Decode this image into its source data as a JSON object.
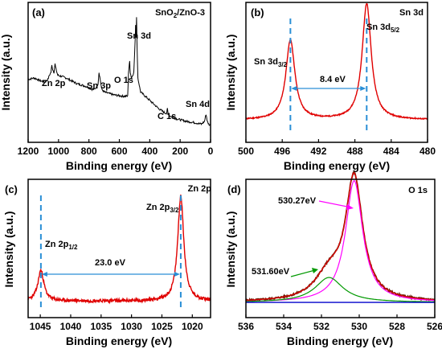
{
  "chart_data": [
    {
      "type": "line",
      "panel_label": "(a)",
      "corner_title": "SnO2/ZnO-3",
      "xlabel": "Binding energy (eV)",
      "ylabel": "Intensity (a.u.)",
      "xlim": [
        1200,
        0
      ],
      "xticks": [
        "1200",
        "1000",
        "800",
        "600",
        "400",
        "200",
        "0"
      ],
      "series": [
        {
          "color": "#000000",
          "x": [
            1200,
            1160,
            1120,
            1090,
            1070,
            1060,
            1050,
            1044,
            1038,
            1030,
            1023,
            1016,
            1005,
            950,
            880,
            820,
            780,
            760,
            750,
            740,
            734,
            726,
            716,
            700,
            640,
            580,
            545,
            540,
            532,
            528,
            520,
            505,
            497,
            493,
            490,
            487,
            484,
            478,
            460,
            420,
            380,
            340,
            300,
            288,
            284,
            280,
            270,
            230,
            160,
            100,
            60,
            40,
            30,
            26,
            22,
            12,
            0
          ],
          "y": [
            0.45,
            0.46,
            0.44,
            0.43,
            0.45,
            0.48,
            0.5,
            0.55,
            0.52,
            0.5,
            0.56,
            0.52,
            0.48,
            0.46,
            0.42,
            0.4,
            0.38,
            0.38,
            0.4,
            0.42,
            0.5,
            0.45,
            0.38,
            0.36,
            0.34,
            0.33,
            0.33,
            0.5,
            0.58,
            0.5,
            0.46,
            0.5,
            0.7,
            0.84,
            0.75,
            0.9,
            0.72,
            0.46,
            0.36,
            0.32,
            0.28,
            0.24,
            0.21,
            0.21,
            0.24,
            0.21,
            0.19,
            0.17,
            0.15,
            0.14,
            0.13,
            0.15,
            0.2,
            0.18,
            0.15,
            0.13,
            0.12
          ]
        }
      ],
      "annotations": [
        {
          "text": "Zn 2p",
          "x": 1060
        },
        {
          "text": "Sn 3p",
          "x": 730
        },
        {
          "text": "O 1s",
          "x": 540
        },
        {
          "text": "Sn 3d",
          "x": 487
        },
        {
          "text": "C 1s",
          "x": 284
        },
        {
          "text": "Sn 4d",
          "x": 26
        }
      ]
    },
    {
      "type": "line",
      "panel_label": "(b)",
      "corner_title": "Sn 3d",
      "xlabel": "Binding energy (eV)",
      "ylabel": "Intensity (a.u.)",
      "xlim": [
        500,
        480
      ],
      "xticks": [
        "500",
        "496",
        "492",
        "488",
        "484",
        "480"
      ],
      "series": [
        {
          "color": "#e00000",
          "peaks": [
            {
              "center": 495.1,
              "height": 0.57,
              "width": 0.6
            },
            {
              "center": 486.7,
              "height": 0.83,
              "width": 0.6
            }
          ]
        }
      ],
      "annotations": [
        {
          "text": "Sn 3d",
          "sub": "3/2",
          "x": 495.1
        },
        {
          "text": "Sn 3d",
          "sub": "5/2",
          "x": 486.7
        },
        {
          "text": "8.4 eV",
          "x1": 495.1,
          "x2": 486.7
        }
      ]
    },
    {
      "type": "line",
      "panel_label": "(c)",
      "corner_title": "Zn 2p",
      "xlabel": "Binding energy (eV)",
      "ylabel": "Intensity (a.u.)",
      "xlim": [
        1047,
        1017
      ],
      "xticks": [
        "1045",
        "1040",
        "1035",
        "1030",
        "1025",
        "1020"
      ],
      "series": [
        {
          "color": "#e00000",
          "peaks": [
            {
              "center": 1044.9,
              "height": 0.22,
              "width": 0.6
            },
            {
              "center": 1021.9,
              "height": 0.76,
              "width": 0.6
            }
          ]
        }
      ],
      "annotations": [
        {
          "text": "Zn 2p",
          "sub": "1/2",
          "x": 1044.9
        },
        {
          "text": "Zn 2p",
          "sub": "3/2",
          "x": 1021.9
        },
        {
          "text": "23.0 eV",
          "x1": 1044.9,
          "x2": 1021.9
        }
      ]
    },
    {
      "type": "line",
      "panel_label": "(d)",
      "corner_title": "O 1s",
      "xlabel": "Binding energy (eV)",
      "ylabel": "Intensity (a.u.)",
      "xlim": [
        536,
        526
      ],
      "xticks": [
        "536",
        "534",
        "532",
        "530",
        "528",
        "526"
      ],
      "series": [
        {
          "role": "raw",
          "color": "#6b1a00",
          "peaks": [
            {
              "center": 530.27,
              "height": 0.88,
              "width": 0.55
            },
            {
              "center": 531.6,
              "height": 0.18,
              "width": 0.9
            }
          ]
        },
        {
          "role": "envelope",
          "color": "#e00000",
          "peaks": [
            {
              "center": 530.27,
              "height": 0.88,
              "width": 0.55
            },
            {
              "center": 531.6,
              "height": 0.18,
              "width": 0.9
            }
          ]
        },
        {
          "role": "component",
          "color": "#ff00ff",
          "peaks": [
            {
              "center": 530.27,
              "height": 0.88,
              "width": 0.55
            }
          ]
        },
        {
          "role": "component",
          "color": "#009900",
          "peaks": [
            {
              "center": 531.6,
              "height": 0.18,
              "width": 0.9
            }
          ]
        },
        {
          "role": "baseline",
          "color": "#0000cc",
          "peaks": []
        }
      ],
      "annotations": [
        {
          "text": "530.27eV",
          "x": 530.27
        },
        {
          "text": "531.60eV",
          "x": 531.6
        }
      ]
    }
  ]
}
